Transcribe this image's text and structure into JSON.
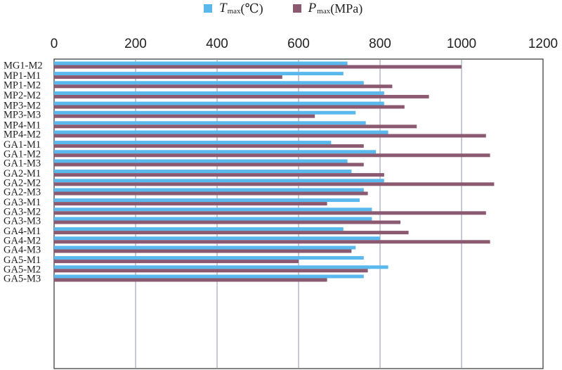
{
  "chart_data": {
    "type": "bar",
    "orientation": "horizontal",
    "title": "",
    "xlabel": "",
    "ylabel": "",
    "xlim": [
      0,
      1200
    ],
    "x_ticks": [
      0,
      200,
      400,
      600,
      800,
      1000,
      1200
    ],
    "x_axis_position": "top",
    "grid": true,
    "legend_position": "top",
    "legend": [
      {
        "symbol": "T",
        "subscript": "max",
        "unit": "(℃)",
        "color": "#5bb8ec"
      },
      {
        "symbol": "P",
        "subscript": "max",
        "unit": "(MPa)",
        "color": "#8b5a70"
      }
    ],
    "categories": [
      "MG1-M2",
      "MP1-M1",
      "MP1-M2",
      "MP2-M2",
      "MP3-M2",
      "MP3-M3",
      "MP4-M1",
      "MP4-M2",
      "GA1-M1",
      "GA1-M2",
      "GA1-M3",
      "GA2-M1",
      "GA2-M2",
      "GA2-M3",
      "GA3-M1",
      "GA3-M2",
      "GA3-M3",
      "GA4-M1",
      "GA4-M2",
      "GA4-M3",
      "GA5-M1",
      "GA5-M2",
      "GA5-M3"
    ],
    "groups": [
      [
        0
      ],
      [
        1,
        2
      ],
      [
        3
      ],
      [
        4,
        5
      ],
      [
        6,
        7
      ],
      [
        8,
        9,
        10
      ],
      [
        11,
        12,
        13
      ],
      [
        14,
        15,
        16
      ],
      [
        17,
        18,
        19
      ],
      [
        20,
        21,
        22
      ]
    ],
    "series": [
      {
        "name": "Tmax (℃)",
        "values": [
          720,
          710,
          760,
          810,
          810,
          740,
          765,
          820,
          680,
          790,
          720,
          730,
          810,
          760,
          750,
          780,
          780,
          710,
          800,
          740,
          760,
          820,
          760
        ]
      },
      {
        "name": "Pmax (MPa)",
        "values": [
          1000,
          560,
          830,
          920,
          860,
          640,
          890,
          1060,
          760,
          1070,
          760,
          810,
          1080,
          770,
          670,
          1060,
          850,
          870,
          1070,
          730,
          600,
          770,
          670
        ]
      }
    ]
  }
}
